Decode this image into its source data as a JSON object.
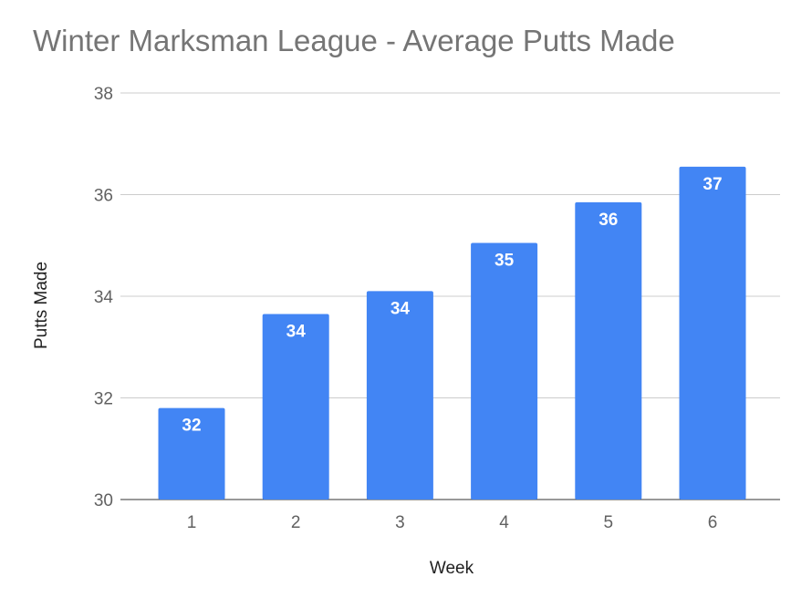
{
  "chart_data": {
    "type": "bar",
    "title": "Winter Marksman League - Average Putts Made",
    "xlabel": "Week",
    "ylabel": "Putts Made",
    "categories": [
      "1",
      "2",
      "3",
      "4",
      "5",
      "6"
    ],
    "values": [
      31.8,
      33.65,
      34.1,
      35.05,
      35.85,
      36.55
    ],
    "data_labels": [
      "32",
      "34",
      "34",
      "35",
      "36",
      "37"
    ],
    "ylim": [
      30,
      38
    ],
    "yticks": [
      30,
      32,
      34,
      36,
      38
    ],
    "grid": true,
    "legend": "none",
    "bar_color": "#4285f4"
  }
}
